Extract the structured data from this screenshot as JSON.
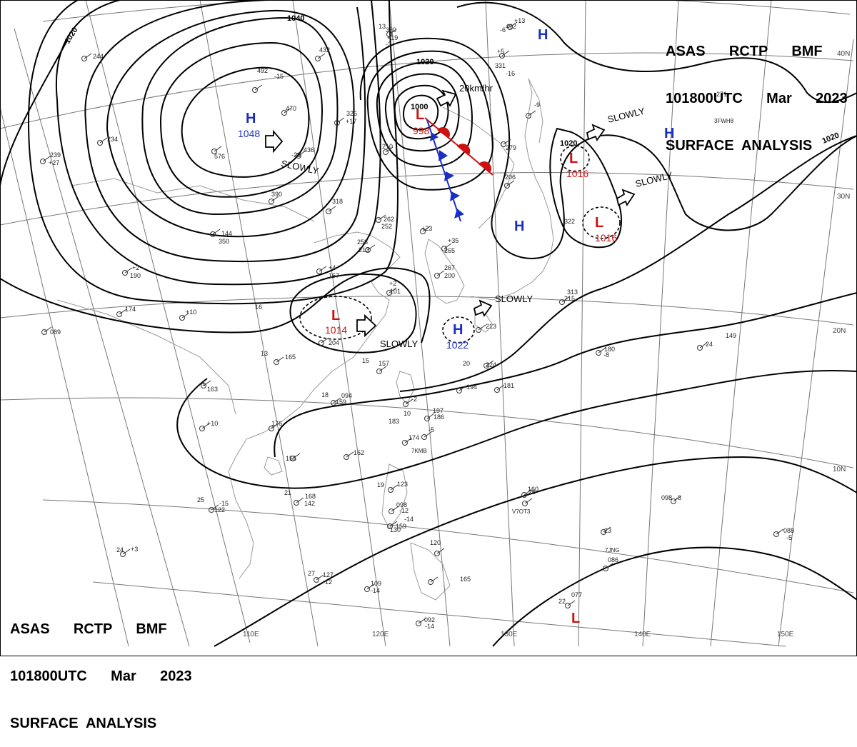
{
  "header": {
    "line1": "ASAS      RCTP      BMF",
    "line2": "101800UTC      Mar      2023",
    "line3": "SURFACE  ANALYSIS"
  },
  "colors": {
    "isobar": "#000000",
    "graticule": "#777777",
    "coast": "#999999",
    "high": "#1a2fc4",
    "low": "#d01010",
    "warm_front": "#d01010",
    "cold_front": "#1a2fc4"
  },
  "lon_labels": [
    "110E",
    "120E",
    "130E",
    "140E",
    "150E"
  ],
  "lat_labels": [
    "40N",
    "30N",
    "20N",
    "10N"
  ],
  "isobar_labels": [
    "1040",
    "1020",
    "1020",
    "1020",
    "1020",
    "1000"
  ],
  "centers": [
    {
      "kind": "H",
      "value": "1048"
    },
    {
      "kind": "L",
      "value": "998"
    },
    {
      "kind": "L",
      "value": "1016"
    },
    {
      "kind": "L",
      "value": "1016"
    },
    {
      "kind": "L",
      "value": "1014"
    },
    {
      "kind": "H",
      "value": "1022"
    },
    {
      "kind": "H",
      "value": ""
    },
    {
      "kind": "H",
      "value": ""
    },
    {
      "kind": "H",
      "value": ""
    },
    {
      "kind": "L",
      "value": ""
    }
  ],
  "motion_labels": [
    "SLOWLY",
    "20km/hr",
    "SLOWLY",
    "SLOWLY",
    "SLOWLY",
    "SLOWLY"
  ],
  "ship_ids": [
    "3FWH8",
    "7KMB",
    "V7OT3",
    "7JNG"
  ],
  "station_numbers": [
    "330",
    "+19",
    "432",
    "492",
    "470",
    "576",
    "436",
    "390",
    "318",
    "326",
    "+17",
    "210",
    "244",
    "234",
    "239",
    "+27",
    "13",
    "+13",
    "402",
    "+5",
    "331",
    "-9",
    "279",
    "206",
    "271",
    "322",
    "262",
    "252",
    "+23",
    "258",
    "213",
    "+35",
    "265",
    "267",
    "200",
    "+2",
    "101",
    "+4",
    "167",
    "+2",
    "190",
    "+10",
    "174",
    "089",
    "144",
    "350",
    "+10",
    "313",
    "215",
    "213",
    "224",
    "204",
    "157",
    "165",
    "163",
    "094",
    "159",
    "-2",
    "197",
    "186",
    "-5",
    "174",
    "183",
    "176",
    "155",
    "162",
    "168",
    "142",
    "-15",
    "122",
    "+3",
    "123",
    "098",
    "-12",
    "-14",
    "159",
    "130",
    "120",
    "127",
    "-12",
    "109",
    "-14",
    "165",
    "092",
    "-14",
    "160",
    "098",
    "-8",
    "149",
    "180",
    "-8",
    "181",
    "194",
    "088",
    "-5",
    "086",
    "077",
    "22",
    "24",
    "24",
    "25",
    "26",
    "27",
    "23",
    "21",
    "19",
    "18",
    "16",
    "15",
    "20",
    "10",
    "13",
    "-1",
    "-3",
    "-6",
    "-16",
    "-26",
    "-15"
  ]
}
